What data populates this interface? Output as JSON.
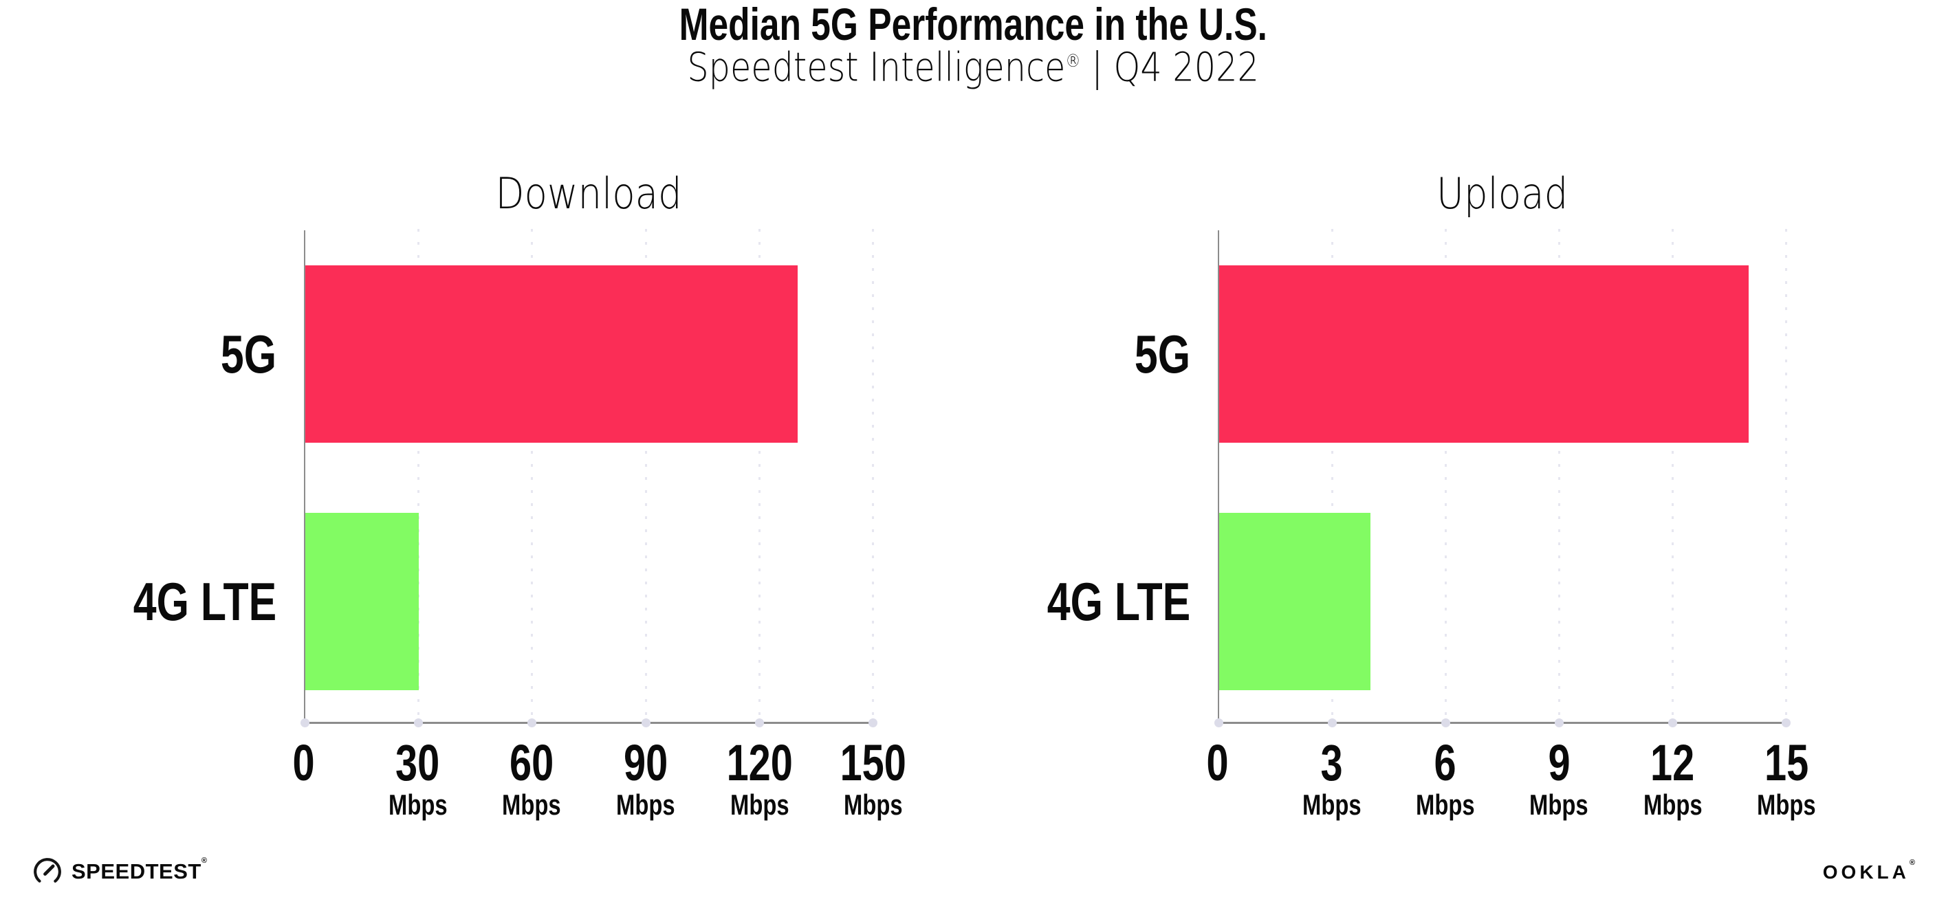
{
  "header": {
    "title": "Median 5G Performance in the U.S.",
    "subtitle_brand": "Speedtest Intelligence",
    "subtitle_reg": "®",
    "subtitle_rest": "| Q4 2022"
  },
  "chart_data": [
    {
      "type": "bar",
      "orientation": "horizontal",
      "title": "Download",
      "categories": [
        "5G",
        "4G LTE"
      ],
      "values": [
        130,
        30
      ],
      "unit": "Mbps",
      "xlim": [
        0,
        150
      ],
      "xticks": [
        0,
        30,
        60,
        90,
        120,
        150
      ],
      "bar_colors": [
        "#fb2d56",
        "#82fb63"
      ],
      "grid": "dotted-vertical",
      "legend": "none"
    },
    {
      "type": "bar",
      "orientation": "horizontal",
      "title": "Upload",
      "categories": [
        "5G",
        "4G LTE"
      ],
      "values": [
        14,
        4
      ],
      "unit": "Mbps",
      "xlim": [
        0,
        15
      ],
      "xticks": [
        0,
        3,
        6,
        9,
        12,
        15
      ],
      "bar_colors": [
        "#fb2d56",
        "#82fb63"
      ],
      "grid": "dotted-vertical",
      "legend": "none"
    }
  ],
  "footer": {
    "left_logo": "SPEEDTEST",
    "left_logo_reg": "®",
    "right_logo": "OOKLA",
    "right_logo_reg": "®"
  },
  "colors": {
    "bar_5g": "#fb2d56",
    "bar_4g_lte": "#82fb63",
    "axis": "#8c8c8c",
    "gridline": "#e6e6f0",
    "text": "#0a0a0a",
    "background": "#ffffff"
  }
}
